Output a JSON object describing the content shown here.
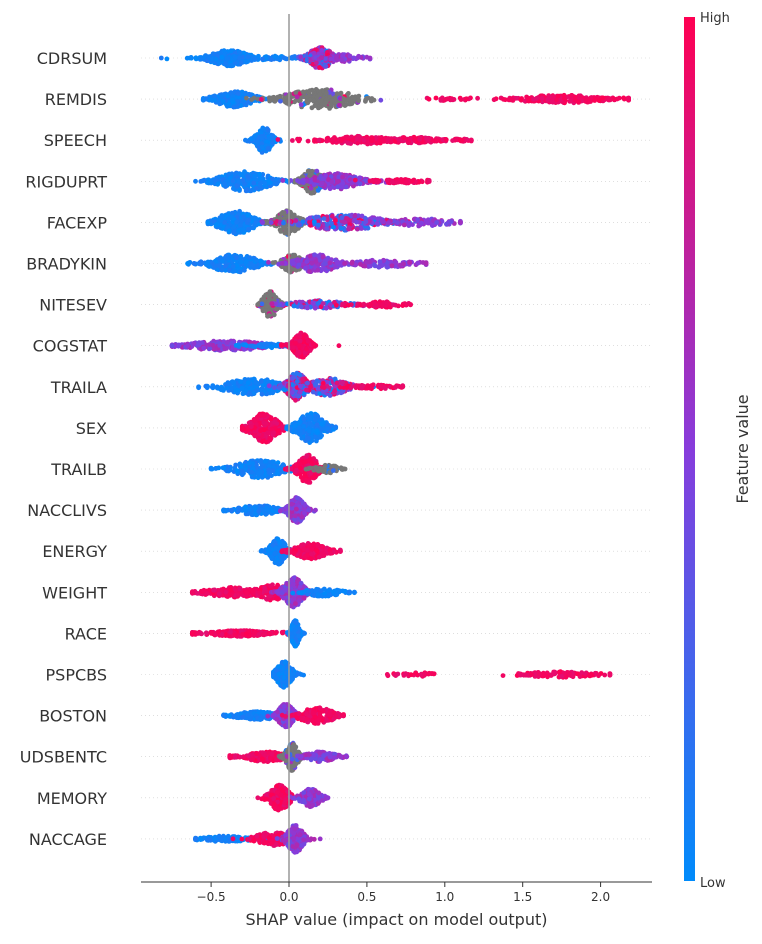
{
  "chart_data": {
    "type": "scatter",
    "subtype": "shap-beeswarm",
    "title": "",
    "xlabel": "SHAP value (impact on model output)",
    "ylabel": "",
    "xlim": [
      -0.95,
      2.33
    ],
    "xticks": [
      -0.5,
      0.0,
      0.5,
      1.0,
      1.5,
      2.0
    ],
    "xtick_labels": [
      "−0.5",
      "0.0",
      "0.5",
      "1.0",
      "1.5",
      "2.0"
    ],
    "colorbar": {
      "label": "Feature value",
      "high_label": "High",
      "low_label": "Low",
      "low_color": "#008bfb",
      "high_color": "#ff0052",
      "missing_color": "#777777"
    },
    "features": [
      {
        "name": "CDRSUM",
        "min": -0.82,
        "max": 0.52,
        "clusters": [
          {
            "center": -0.38,
            "spread": 0.1,
            "count": 260,
            "color": "low",
            "thickness": 8
          },
          {
            "center": -0.1,
            "spread": 0.22,
            "count": 80,
            "color": "low",
            "thickness": 2
          },
          {
            "center": 0.2,
            "spread": 0.06,
            "count": 260,
            "color": "mixed",
            "thickness": 11
          },
          {
            "center": 0.36,
            "spread": 0.08,
            "count": 60,
            "color": "purple",
            "thickness": 4
          }
        ]
      },
      {
        "name": "REMDIS",
        "min": -0.55,
        "max": 2.18,
        "clusters": [
          {
            "center": -0.35,
            "spread": 0.1,
            "count": 200,
            "color": "low",
            "thickness": 8
          },
          {
            "center": 0.2,
            "spread": 0.18,
            "count": 260,
            "color": "gray",
            "thickness": 10
          },
          {
            "center": 1.05,
            "spread": 0.12,
            "count": 25,
            "color": "high",
            "thickness": 2
          },
          {
            "center": 1.75,
            "spread": 0.22,
            "count": 220,
            "color": "high",
            "thickness": 4
          }
        ]
      },
      {
        "name": "SPEECH",
        "min": -0.28,
        "max": 1.17,
        "clusters": [
          {
            "center": -0.16,
            "spread": 0.04,
            "count": 140,
            "color": "low",
            "thickness": 13
          },
          {
            "center": 0.45,
            "spread": 0.18,
            "count": 140,
            "color": "high",
            "thickness": 4
          },
          {
            "center": 0.8,
            "spread": 0.14,
            "count": 120,
            "color": "high",
            "thickness": 3
          },
          {
            "center": 1.1,
            "spread": 0.06,
            "count": 20,
            "color": "high",
            "thickness": 1
          }
        ]
      },
      {
        "name": "RIGDUPRT",
        "min": -0.6,
        "max": 0.9,
        "clusters": [
          {
            "center": -0.28,
            "spread": 0.13,
            "count": 260,
            "color": "low",
            "thickness": 10
          },
          {
            "center": 0.15,
            "spread": 0.05,
            "count": 200,
            "color": "gray",
            "thickness": 12
          },
          {
            "center": 0.3,
            "spread": 0.12,
            "count": 220,
            "color": "purple",
            "thickness": 8
          },
          {
            "center": 0.7,
            "spread": 0.12,
            "count": 80,
            "color": "high",
            "thickness": 2
          }
        ]
      },
      {
        "name": "FACEXP",
        "min": -0.52,
        "max": 1.1,
        "clusters": [
          {
            "center": -0.34,
            "spread": 0.09,
            "count": 240,
            "color": "low",
            "thickness": 12
          },
          {
            "center": -0.01,
            "spread": 0.06,
            "count": 180,
            "color": "gray",
            "thickness": 12
          },
          {
            "center": 0.35,
            "spread": 0.2,
            "count": 240,
            "color": "mixed",
            "thickness": 8
          },
          {
            "center": 0.85,
            "spread": 0.15,
            "count": 80,
            "color": "purple",
            "thickness": 4
          }
        ]
      },
      {
        "name": "BRADYKIN",
        "min": -0.65,
        "max": 0.88,
        "clusters": [
          {
            "center": -0.35,
            "spread": 0.12,
            "count": 220,
            "color": "low",
            "thickness": 9
          },
          {
            "center": 0.02,
            "spread": 0.05,
            "count": 140,
            "color": "gray",
            "thickness": 9
          },
          {
            "center": 0.18,
            "spread": 0.1,
            "count": 200,
            "color": "purple",
            "thickness": 9
          },
          {
            "center": 0.6,
            "spread": 0.15,
            "count": 110,
            "color": "purple",
            "thickness": 4
          }
        ]
      },
      {
        "name": "NITESEV",
        "min": -0.2,
        "max": 0.78,
        "clusters": [
          {
            "center": -0.12,
            "spread": 0.04,
            "count": 180,
            "color": "gray",
            "thickness": 13
          },
          {
            "center": 0.2,
            "spread": 0.15,
            "count": 120,
            "color": "mixed",
            "thickness": 4
          },
          {
            "center": 0.6,
            "spread": 0.1,
            "count": 70,
            "color": "high",
            "thickness": 3
          }
        ]
      },
      {
        "name": "COGSTAT",
        "min": -0.75,
        "max": 0.32,
        "clusters": [
          {
            "center": -0.4,
            "spread": 0.2,
            "count": 240,
            "color": "purple",
            "thickness": 5
          },
          {
            "center": -0.12,
            "spread": 0.1,
            "count": 60,
            "color": "low",
            "thickness": 2
          },
          {
            "center": 0.08,
            "spread": 0.04,
            "count": 220,
            "color": "high",
            "thickness": 13
          }
        ]
      },
      {
        "name": "TRAILA",
        "min": -0.58,
        "max": 0.73,
        "clusters": [
          {
            "center": -0.22,
            "spread": 0.16,
            "count": 240,
            "color": "low",
            "thickness": 8
          },
          {
            "center": 0.05,
            "spread": 0.05,
            "count": 200,
            "color": "mixed",
            "thickness": 14
          },
          {
            "center": 0.25,
            "spread": 0.1,
            "count": 180,
            "color": "mixed",
            "thickness": 9
          },
          {
            "center": 0.55,
            "spread": 0.12,
            "count": 60,
            "color": "high",
            "thickness": 2
          }
        ]
      },
      {
        "name": "SEX",
        "min": -0.3,
        "max": 0.3,
        "clusters": [
          {
            "center": -0.16,
            "spread": 0.07,
            "count": 260,
            "color": "high",
            "thickness": 15
          },
          {
            "center": 0.14,
            "spread": 0.07,
            "count": 260,
            "color": "low",
            "thickness": 15
          }
        ]
      },
      {
        "name": "TRAILB",
        "min": -0.5,
        "max": 0.36,
        "clusters": [
          {
            "center": -0.18,
            "spread": 0.13,
            "count": 220,
            "color": "low",
            "thickness": 9
          },
          {
            "center": 0.12,
            "spread": 0.05,
            "count": 220,
            "color": "high",
            "thickness": 14
          },
          {
            "center": 0.25,
            "spread": 0.06,
            "count": 60,
            "color": "gray",
            "thickness": 4
          }
        ]
      },
      {
        "name": "NACCLIVS",
        "min": -0.42,
        "max": 0.17,
        "clusters": [
          {
            "center": -0.2,
            "spread": 0.1,
            "count": 140,
            "color": "low",
            "thickness": 5
          },
          {
            "center": 0.05,
            "spread": 0.04,
            "count": 200,
            "color": "purple",
            "thickness": 13
          }
        ]
      },
      {
        "name": "ENERGY",
        "min": -0.18,
        "max": 0.33,
        "clusters": [
          {
            "center": -0.07,
            "spread": 0.04,
            "count": 200,
            "color": "low",
            "thickness": 13
          },
          {
            "center": 0.14,
            "spread": 0.08,
            "count": 200,
            "color": "high",
            "thickness": 8
          }
        ]
      },
      {
        "name": "WEIGHT",
        "min": -0.62,
        "max": 0.42,
        "clusters": [
          {
            "center": -0.35,
            "spread": 0.15,
            "count": 180,
            "color": "high",
            "thickness": 5
          },
          {
            "center": -0.1,
            "spread": 0.08,
            "count": 120,
            "color": "high",
            "thickness": 8
          },
          {
            "center": 0.03,
            "spread": 0.05,
            "count": 260,
            "color": "purple",
            "thickness": 15
          },
          {
            "center": 0.22,
            "spread": 0.09,
            "count": 80,
            "color": "low",
            "thickness": 4
          }
        ]
      },
      {
        "name": "RACE",
        "min": -0.62,
        "max": 0.1,
        "clusters": [
          {
            "center": -0.32,
            "spread": 0.14,
            "count": 240,
            "color": "high",
            "thickness": 3
          },
          {
            "center": 0.04,
            "spread": 0.02,
            "count": 200,
            "color": "low",
            "thickness": 13
          }
        ]
      },
      {
        "name": "PSPCBS",
        "min": -0.1,
        "max": 2.06,
        "clusters": [
          {
            "center": -0.03,
            "spread": 0.04,
            "count": 200,
            "color": "low",
            "thickness": 13
          },
          {
            "center": 0.83,
            "spread": 0.08,
            "count": 30,
            "color": "high",
            "thickness": 2
          },
          {
            "center": 1.75,
            "spread": 0.18,
            "count": 110,
            "color": "high",
            "thickness": 3
          }
        ]
      },
      {
        "name": "BOSTON",
        "min": -0.42,
        "max": 0.35,
        "clusters": [
          {
            "center": -0.2,
            "spread": 0.12,
            "count": 180,
            "color": "low",
            "thickness": 4
          },
          {
            "center": -0.02,
            "spread": 0.04,
            "count": 200,
            "color": "purple",
            "thickness": 12
          },
          {
            "center": 0.18,
            "spread": 0.09,
            "count": 200,
            "color": "high",
            "thickness": 8
          }
        ]
      },
      {
        "name": "UDSBENTC",
        "min": -0.38,
        "max": 0.37,
        "clusters": [
          {
            "center": -0.15,
            "spread": 0.11,
            "count": 200,
            "color": "high",
            "thickness": 5
          },
          {
            "center": 0.02,
            "spread": 0.03,
            "count": 220,
            "color": "gray",
            "thickness": 14
          },
          {
            "center": 0.2,
            "spread": 0.08,
            "count": 120,
            "color": "purple",
            "thickness": 5
          }
        ]
      },
      {
        "name": "MEMORY",
        "min": -0.2,
        "max": 0.25,
        "clusters": [
          {
            "center": -0.06,
            "spread": 0.05,
            "count": 220,
            "color": "high",
            "thickness": 13
          },
          {
            "center": 0.14,
            "spread": 0.05,
            "count": 160,
            "color": "purple",
            "thickness": 9
          }
        ]
      },
      {
        "name": "NACCAGE",
        "min": -0.6,
        "max": 0.2,
        "clusters": [
          {
            "center": -0.4,
            "spread": 0.12,
            "count": 120,
            "color": "low",
            "thickness": 3
          },
          {
            "center": -0.1,
            "spread": 0.09,
            "count": 160,
            "color": "high",
            "thickness": 7
          },
          {
            "center": 0.04,
            "spread": 0.04,
            "count": 240,
            "color": "purple",
            "thickness": 14
          }
        ]
      }
    ]
  }
}
